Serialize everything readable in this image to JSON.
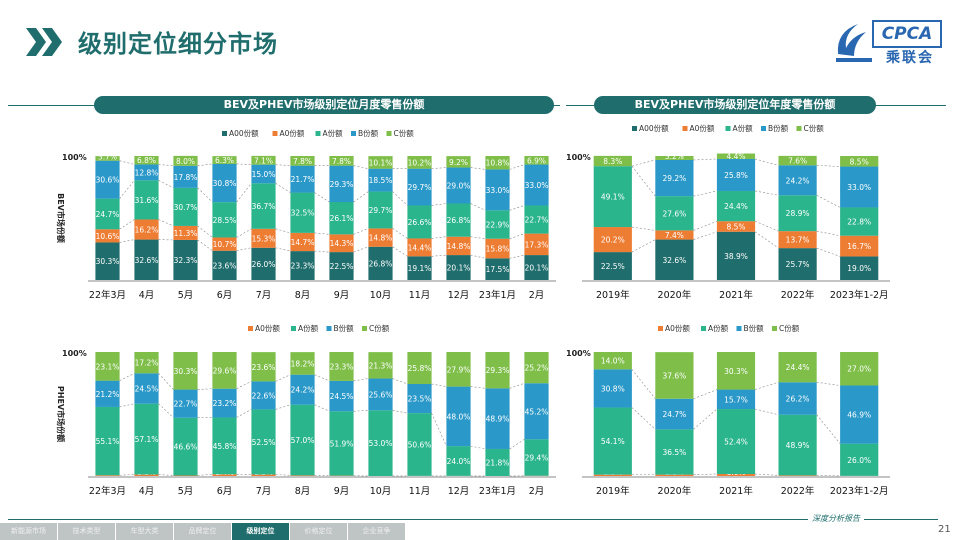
{
  "header": {
    "title": "级别定位细分市场",
    "logo_text": "CPCA",
    "logo_cn": "乘联会"
  },
  "colors": {
    "A00": "#1f6d6c",
    "A0": "#ee7d34",
    "A": "#2bb58c",
    "B": "#2a98c8",
    "C": "#7ebe49",
    "accent": "#1f6d6c"
  },
  "footer": {
    "tabs": [
      "新能源市场",
      "技术类型",
      "车型大类",
      "品牌定位",
      "级别定位",
      "价格定位",
      "企业竞争"
    ],
    "active_tab": "级别定位",
    "slogan": "深度分析报告",
    "page_number": "21"
  },
  "chart_data": [
    {
      "id": "bev-month",
      "type": "bar",
      "stacked": true,
      "title": "BEV及PHEV市场级别定位月度零售份额",
      "ylabel": "BEV市场份额",
      "ytick": "100%",
      "categories": [
        "22年3月",
        "4月",
        "5月",
        "6月",
        "7月",
        "8月",
        "9月",
        "10月",
        "11月",
        "12月",
        "23年1月",
        "2月"
      ],
      "series": [
        {
          "name": "A00份额",
          "key": "A00",
          "values": [
            30.3,
            32.6,
            32.3,
            23.6,
            26.0,
            23.3,
            22.5,
            26.8,
            19.1,
            20.1,
            17.5,
            20.1
          ]
        },
        {
          "name": "A0份额",
          "key": "A0",
          "values": [
            10.6,
            16.2,
            11.3,
            10.7,
            15.3,
            14.7,
            14.3,
            14.8,
            14.4,
            14.8,
            15.8,
            17.3
          ]
        },
        {
          "name": "A份额",
          "key": "A",
          "values": [
            24.7,
            31.6,
            30.7,
            28.5,
            36.7,
            32.5,
            26.1,
            29.7,
            26.6,
            26.8,
            22.9,
            22.7
          ]
        },
        {
          "name": "B份额",
          "key": "B",
          "values": [
            30.6,
            12.8,
            17.8,
            30.8,
            15.0,
            21.7,
            29.3,
            18.5,
            29.7,
            29.0,
            33.0,
            33.0
          ]
        },
        {
          "name": "C份额",
          "key": "C",
          "values": [
            3.7,
            6.8,
            8.0,
            6.3,
            7.1,
            7.8,
            7.8,
            10.1,
            10.2,
            9.2,
            10.8,
            6.9
          ]
        }
      ]
    },
    {
      "id": "bev-year",
      "type": "bar",
      "stacked": true,
      "title": "BEV及PHEV市场级别定位年度零售份额",
      "ytick": "100%",
      "categories": [
        "2019年",
        "2020年",
        "2021年",
        "2022年",
        "2023年1-2月"
      ],
      "series": [
        {
          "name": "A00份额",
          "key": "A00",
          "values": [
            22.5,
            32.6,
            38.9,
            25.7,
            19.0
          ]
        },
        {
          "name": "A0份额",
          "key": "A0",
          "values": [
            20.2,
            7.4,
            8.5,
            13.7,
            16.7
          ]
        },
        {
          "name": "A份额",
          "key": "A",
          "values": [
            49.1,
            27.6,
            24.4,
            28.9,
            22.8
          ]
        },
        {
          "name": "B份额",
          "key": "B",
          "values": [
            null,
            29.2,
            25.8,
            24.2,
            33.0
          ]
        },
        {
          "name": "C份额",
          "key": "C",
          "values": [
            8.3,
            3.2,
            4.4,
            7.6,
            8.5
          ]
        }
      ]
    },
    {
      "id": "phev-month",
      "type": "bar",
      "stacked": true,
      "ylabel": "PHEV市场份额",
      "ytick": "100%",
      "categories": [
        "22年3月",
        "4月",
        "5月",
        "6月",
        "7月",
        "8月",
        "9月",
        "10月",
        "11月",
        "12月",
        "23年1月",
        "2月"
      ],
      "series": [
        {
          "name": "A0份额",
          "key": "A0",
          "values": [
            0.6,
            1.2,
            0.4,
            1.4,
            1.2,
            0.5,
            0.3,
            0.0,
            0.1,
            0.1,
            0.0,
            0.2
          ]
        },
        {
          "name": "A份额",
          "key": "A",
          "values": [
            55.1,
            57.1,
            46.6,
            45.8,
            52.5,
            57.0,
            51.9,
            53.0,
            50.6,
            24.0,
            21.8,
            29.4
          ]
        },
        {
          "name": "B份额",
          "key": "B",
          "values": [
            21.2,
            24.5,
            22.7,
            23.2,
            22.6,
            24.2,
            24.5,
            25.6,
            23.5,
            48.0,
            48.9,
            45.2
          ]
        },
        {
          "name": "C份额",
          "key": "C",
          "values": [
            23.1,
            17.2,
            30.3,
            29.6,
            23.6,
            18.2,
            23.3,
            21.3,
            25.8,
            27.9,
            29.3,
            25.2
          ]
        }
      ]
    },
    {
      "id": "phev-year",
      "type": "bar",
      "stacked": true,
      "ytick": "100%",
      "categories": [
        "2019年",
        "2020年",
        "2021年",
        "2022年",
        "2023年1-2月"
      ],
      "series": [
        {
          "name": "A0份额",
          "key": "A0",
          "values": [
            1.1,
            1.1,
            1.6,
            0.5,
            0.1
          ]
        },
        {
          "name": "A份额",
          "key": "A",
          "values": [
            54.1,
            36.5,
            52.4,
            48.9,
            26.0
          ]
        },
        {
          "name": "B份额",
          "key": "B",
          "values": [
            30.8,
            24.7,
            15.7,
            26.2,
            46.9
          ]
        },
        {
          "name": "C份额",
          "key": "C",
          "values": [
            14.0,
            37.6,
            30.3,
            24.4,
            27.0
          ]
        }
      ]
    }
  ]
}
